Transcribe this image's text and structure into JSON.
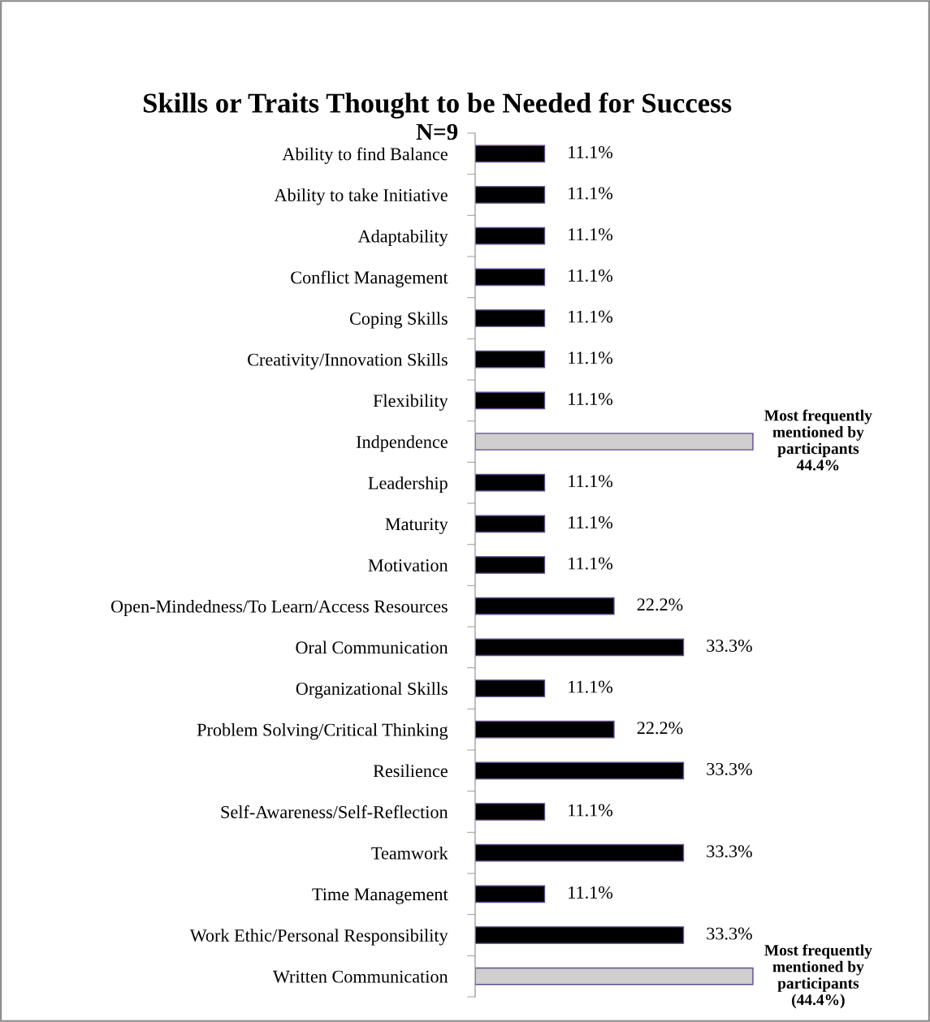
{
  "chart_data": {
    "type": "bar",
    "orientation": "horizontal",
    "title": "Skills or Traits Thought to be Needed for Success",
    "subtitle": "N=9",
    "categories": [
      "Ability to find Balance",
      "Ability to take Initiative",
      "Adaptability",
      "Conflict Management",
      "Coping Skills",
      "Creativity/Innovation Skills",
      "Flexibility",
      "Indpendence",
      "Leadership",
      "Maturity",
      "Motivation",
      "Open-Mindedness/To Learn/Access Resources",
      "Oral Communication",
      "Organizational Skills",
      "Problem Solving/Critical Thinking",
      "Resilience",
      "Self-Awareness/Self-Reflection",
      "Teamwork",
      "Time Management",
      "Work Ethic/Personal Responsibility",
      "Written Communication"
    ],
    "values": [
      11.1,
      11.1,
      11.1,
      11.1,
      11.1,
      11.1,
      11.1,
      44.4,
      11.1,
      11.1,
      11.1,
      22.2,
      33.3,
      11.1,
      22.2,
      33.3,
      11.1,
      33.3,
      11.1,
      33.3,
      44.4
    ],
    "colors": [
      "#000000",
      "#000000",
      "#000000",
      "#000000",
      "#000000",
      "#000000",
      "#000000",
      "#d0cece",
      "#000000",
      "#000000",
      "#000000",
      "#000000",
      "#000000",
      "#000000",
      "#000000",
      "#000000",
      "#000000",
      "#000000",
      "#000000",
      "#000000",
      "#d0cece"
    ],
    "value_labels": [
      "11.1%",
      "11.1%",
      "11.1%",
      "11.1%",
      "11.1%",
      "11.1%",
      "11.1%",
      "Most frequently\nmentioned by\nparticipants\n44.4%",
      "11.1%",
      "11.1%",
      "11.1%",
      "22.2%",
      "33.3%",
      "11.1%",
      "22.2%",
      "33.3%",
      "11.1%",
      "33.3%",
      "11.1%",
      "33.3%",
      "Most frequently\nmentioned by\nparticipants\n(44.4%)"
    ],
    "grid": false,
    "legend": false
  }
}
